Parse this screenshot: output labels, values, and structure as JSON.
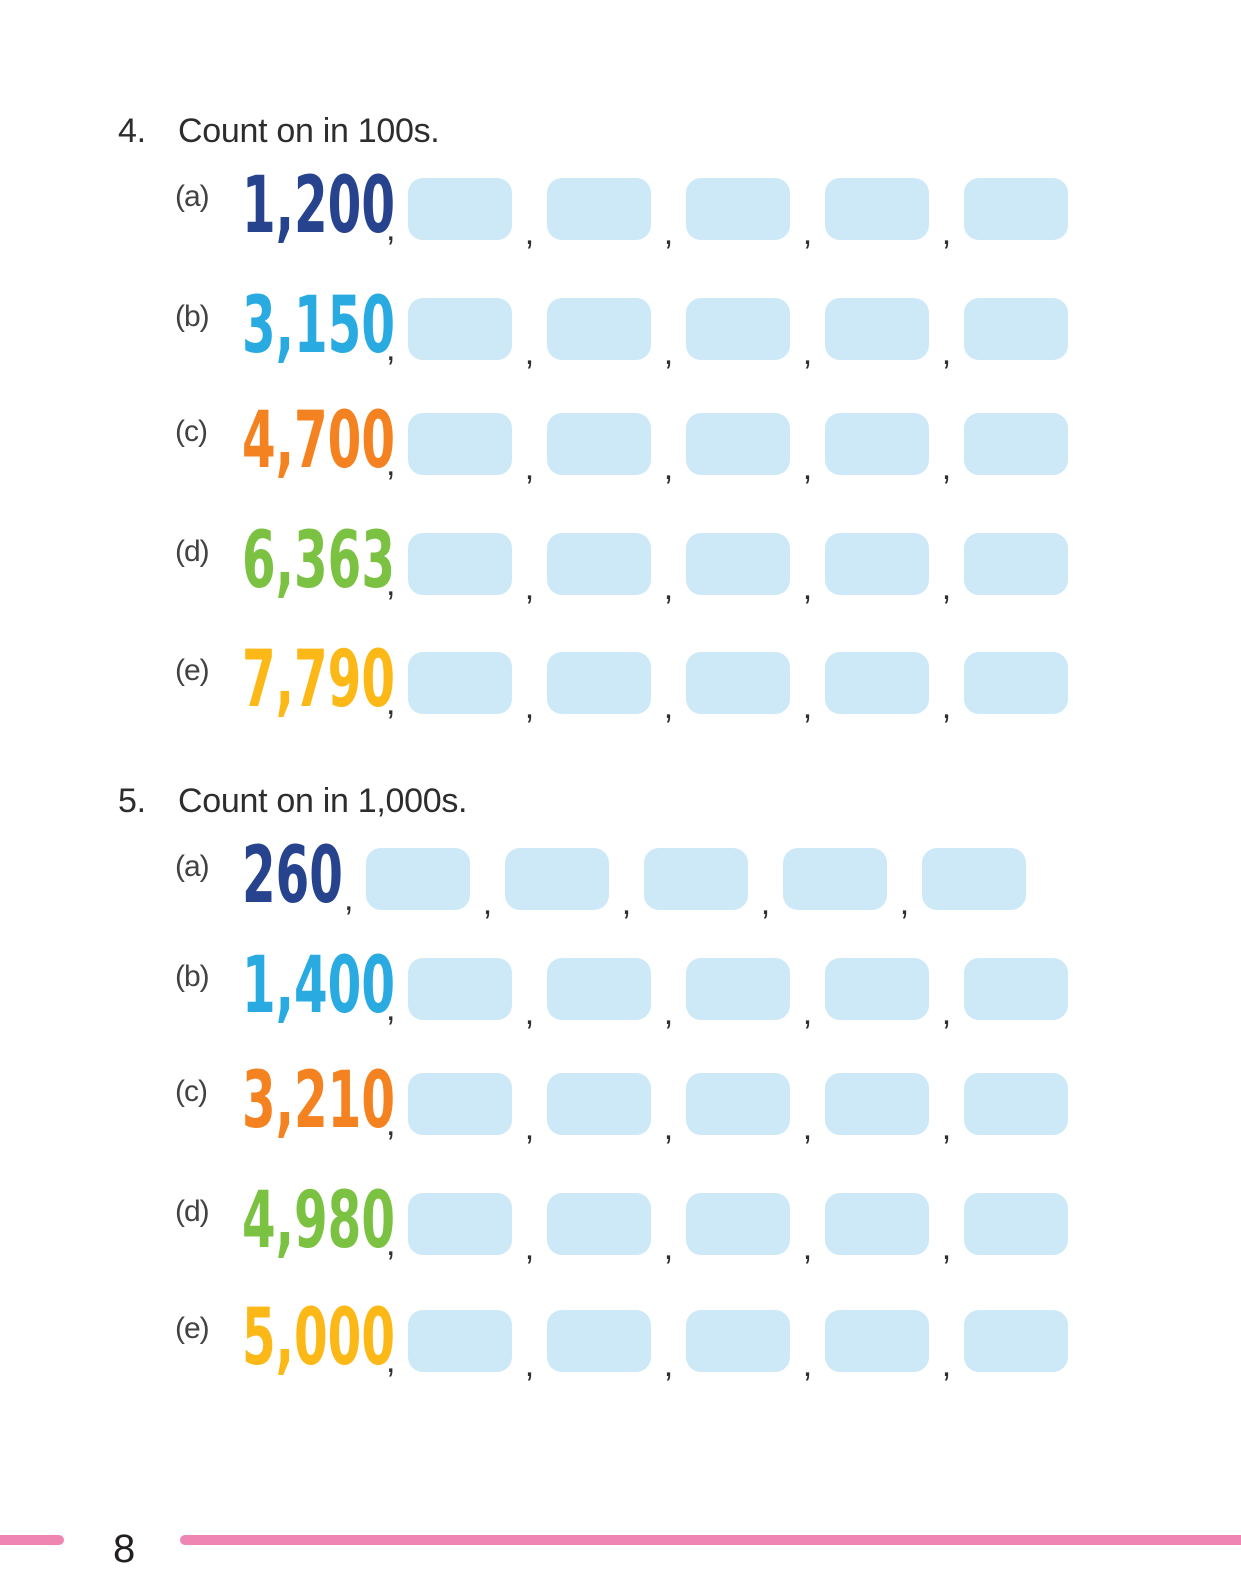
{
  "separator": ",",
  "page_number": "8",
  "answer_boxes_per_item": 5,
  "colors": {
    "navy": "#27438e",
    "cyan": "#29abe2",
    "orange": "#f58220",
    "green": "#7cc242",
    "yellow": "#fcb817",
    "answer_box_fill": "#cde9f8",
    "footer_rule_pink": "#ef85b2",
    "text_dark": "#2d2d2d"
  },
  "questions": [
    {
      "number": "4.",
      "title": "Count on in 100s.",
      "items": [
        {
          "label": "(a)",
          "start": "1,200",
          "color": "#27438e"
        },
        {
          "label": "(b)",
          "start": "3,150",
          "color": "#29abe2"
        },
        {
          "label": "(c)",
          "start": "4,700",
          "color": "#f58220"
        },
        {
          "label": "(d)",
          "start": "6,363",
          "color": "#7cc242"
        },
        {
          "label": "(e)",
          "start": "7,790",
          "color": "#fcb817"
        }
      ]
    },
    {
      "number": "5.",
      "title": "Count on in 1,000s.",
      "items": [
        {
          "label": "(a)",
          "start": "260",
          "color": "#27438e"
        },
        {
          "label": "(b)",
          "start": "1,400",
          "color": "#29abe2"
        },
        {
          "label": "(c)",
          "start": "3,210",
          "color": "#f58220"
        },
        {
          "label": "(d)",
          "start": "4,980",
          "color": "#7cc242"
        },
        {
          "label": "(e)",
          "start": "5,000",
          "color": "#fcb817"
        }
      ]
    }
  ]
}
